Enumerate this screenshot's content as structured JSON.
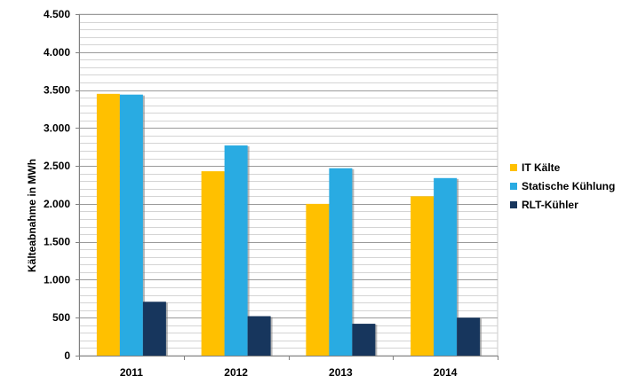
{
  "chart_data": {
    "type": "bar",
    "title": "",
    "xlabel": "",
    "ylabel": "Kälteabnahme in MWh",
    "categories": [
      "2011",
      "2012",
      "2013",
      "2014"
    ],
    "series": [
      {
        "name": "IT Kälte",
        "color": "#ffc000",
        "values": [
          3450,
          2430,
          2000,
          2100
        ]
      },
      {
        "name": "Statische Kühlung",
        "color": "#29abe2",
        "values": [
          3440,
          2770,
          2470,
          2340
        ]
      },
      {
        "name": "RLT-Kühler",
        "color": "#17365d",
        "values": [
          710,
          520,
          420,
          500
        ]
      }
    ],
    "ylim": [
      0,
      4500
    ],
    "y_ticks": [
      0,
      500,
      1000,
      1500,
      2000,
      2500,
      3000,
      3500,
      4000,
      4500
    ],
    "y_tick_labels": [
      "0",
      "500",
      "1.000",
      "1.500",
      "2.000",
      "2.500",
      "3.000",
      "3.500",
      "4.000",
      "4.500"
    ],
    "minor_grid_step": 100,
    "grid": true,
    "legend_position": "right"
  }
}
